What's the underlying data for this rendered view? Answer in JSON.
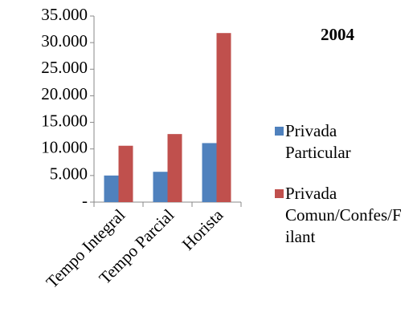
{
  "chart_data": {
    "type": "bar",
    "title": "2004",
    "categories": [
      "Tempo Integral",
      "Tempo Parcial",
      "Horista"
    ],
    "series": [
      {
        "name": "Privada Particular",
        "color": "#4f81bd",
        "values": [
          5000,
          5700,
          11100
        ]
      },
      {
        "name": "Privada Comun/Confes/Filant",
        "color": "#c0504d",
        "values": [
          10600,
          12800,
          31800
        ]
      }
    ],
    "ylim": [
      0,
      35000
    ],
    "yticks": [
      {
        "value": 0,
        "label": "-"
      },
      {
        "value": 5000,
        "label": "5.000"
      },
      {
        "value": 10000,
        "label": "10.000"
      },
      {
        "value": 15000,
        "label": "15.000"
      },
      {
        "value": 20000,
        "label": "20.000"
      },
      {
        "value": 25000,
        "label": "25.000"
      },
      {
        "value": 30000,
        "label": "30.000"
      },
      {
        "value": 35000,
        "label": "35.000"
      }
    ],
    "grid": false,
    "legend": "right"
  }
}
